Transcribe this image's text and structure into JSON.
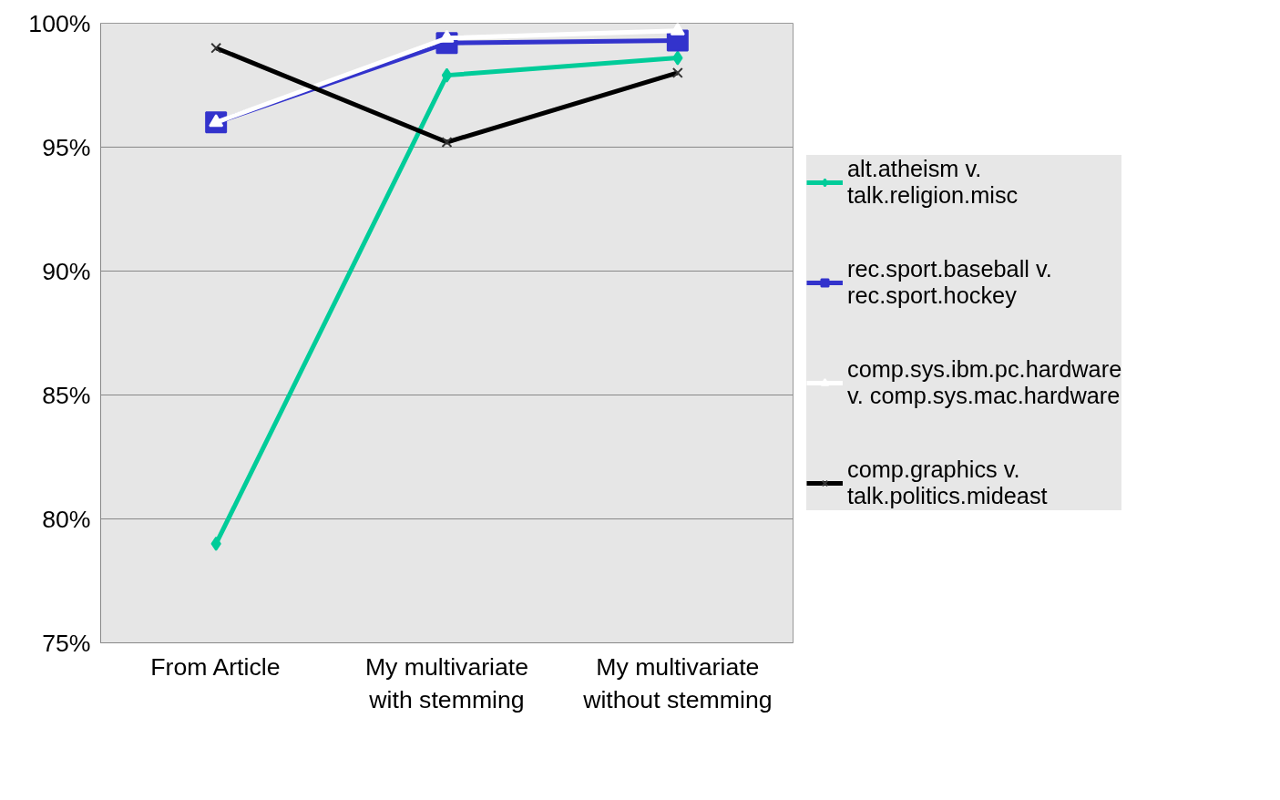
{
  "chart_data": {
    "type": "line",
    "categories": [
      "From Article",
      "My multivariate with stemming",
      "My multivariate without stemming"
    ],
    "ylim": [
      75,
      100
    ],
    "yticks": [
      {
        "value": 75,
        "label": "75%"
      },
      {
        "value": 80,
        "label": "80%"
      },
      {
        "value": 85,
        "label": "85%"
      },
      {
        "value": 90,
        "label": "90%"
      },
      {
        "value": 95,
        "label": "95%"
      },
      {
        "value": 100,
        "label": "100%"
      }
    ],
    "grid": "y",
    "legend": "right",
    "line_style": "solid",
    "series": [
      {
        "name": "alt.atheism v. talk.religion.misc",
        "color": "#00cc99",
        "marker": "diamond",
        "values": [
          79.0,
          97.9,
          98.6
        ]
      },
      {
        "name": "rec.sport.baseball v. rec.sport.hockey",
        "color": "#3333cc",
        "marker": "square",
        "values": [
          96.0,
          99.2,
          99.3
        ]
      },
      {
        "name": "comp.sys.ibm.pc.hardware v. comp.sys.mac.hardware",
        "color": "#ffffff",
        "marker": "triangle",
        "values": [
          96.0,
          99.4,
          99.7
        ]
      },
      {
        "name": "comp.graphics v. talk.politics.mideast",
        "color": "#000000",
        "marker": "cross",
        "values": [
          99.0,
          95.2,
          98.0
        ]
      }
    ]
  }
}
